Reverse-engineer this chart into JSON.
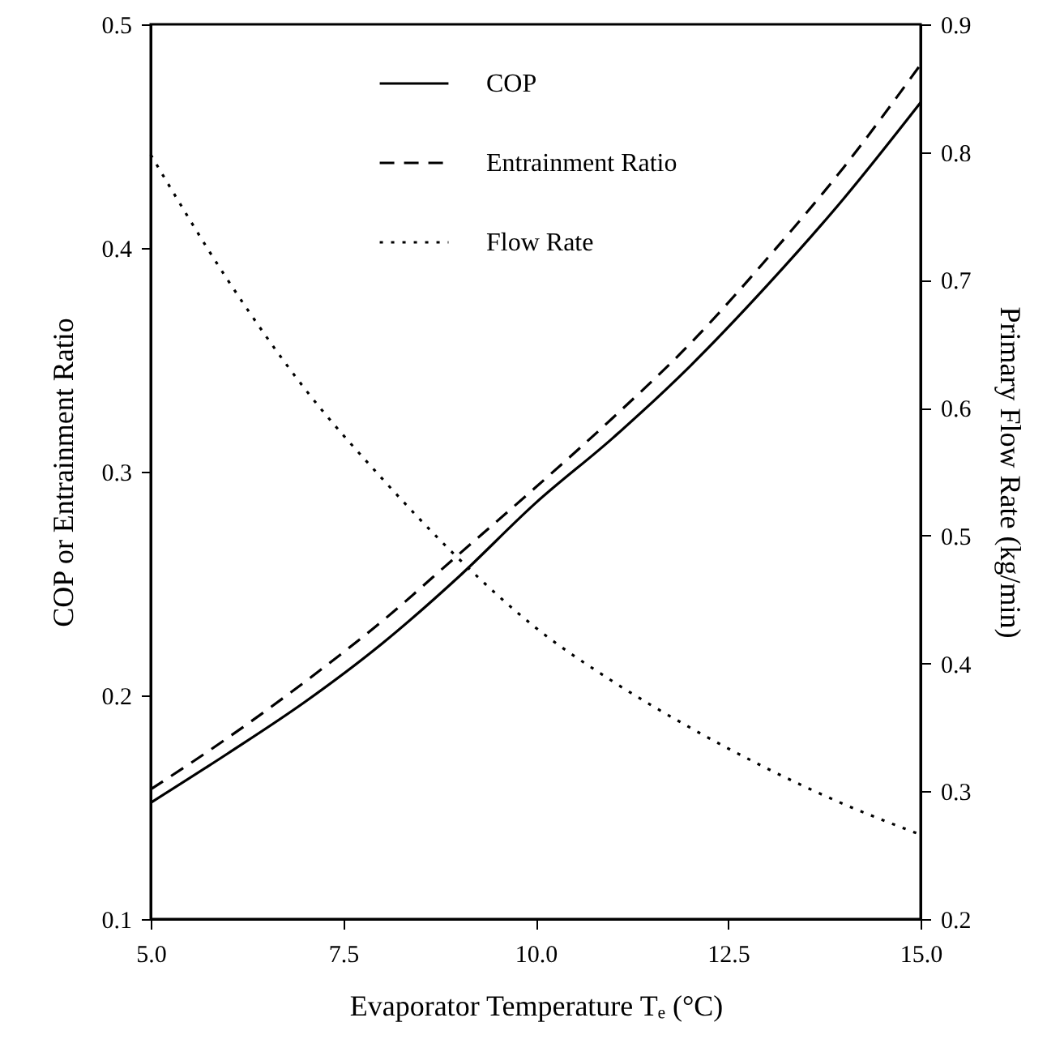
{
  "chart_data": {
    "type": "line",
    "xlabel": "Evaporator Temperature Tₑ (°C)",
    "ylabel": "COP  or  Entrainment Ratio",
    "y2label": "Primary Flow Rate  (kg/min)",
    "x": [
      5,
      6,
      7,
      8,
      9,
      10,
      11,
      12,
      13,
      14,
      15
    ],
    "series": [
      {
        "name": "COP",
        "color": "#000000",
        "line_style": "solid",
        "values": [
          0.152,
          0.174,
          0.197,
          0.223,
          0.253,
          0.286,
          0.315,
          0.347,
          0.383,
          0.422,
          0.465
        ]
      },
      {
        "name": "Entrainment Ratio",
        "color": "#000000",
        "line_style": "dashed",
        "values": [
          0.158,
          0.181,
          0.206,
          0.233,
          0.263,
          0.293,
          0.324,
          0.357,
          0.395,
          0.436,
          0.482
        ]
      },
      {
        "name": "Flow Rate",
        "color": "#000000",
        "line_style": "dotted",
        "axis": "y2",
        "values": [
          0.798,
          0.7,
          0.615,
          0.545,
          0.482,
          0.428,
          0.386,
          0.35,
          0.318,
          0.29,
          0.266
        ]
      }
    ],
    "xlim": [
      5,
      15
    ],
    "xticks": [
      {
        "value": 5,
        "label": "5.0"
      },
      {
        "value": 7.5,
        "label": "7.5"
      },
      {
        "value": 10,
        "label": "10.0"
      },
      {
        "value": 12.5,
        "label": "12.5"
      },
      {
        "value": 15,
        "label": "15.0"
      }
    ],
    "ylim": [
      0.1,
      0.5
    ],
    "yticks": [
      0.1,
      0.2,
      0.3,
      0.4,
      0.5
    ],
    "y2lim": [
      0.2,
      0.9
    ],
    "y2ticks": [
      0.2,
      0.3,
      0.4,
      0.5,
      0.6,
      0.7,
      0.8,
      0.9
    ],
    "grid": false,
    "legend": "top"
  }
}
